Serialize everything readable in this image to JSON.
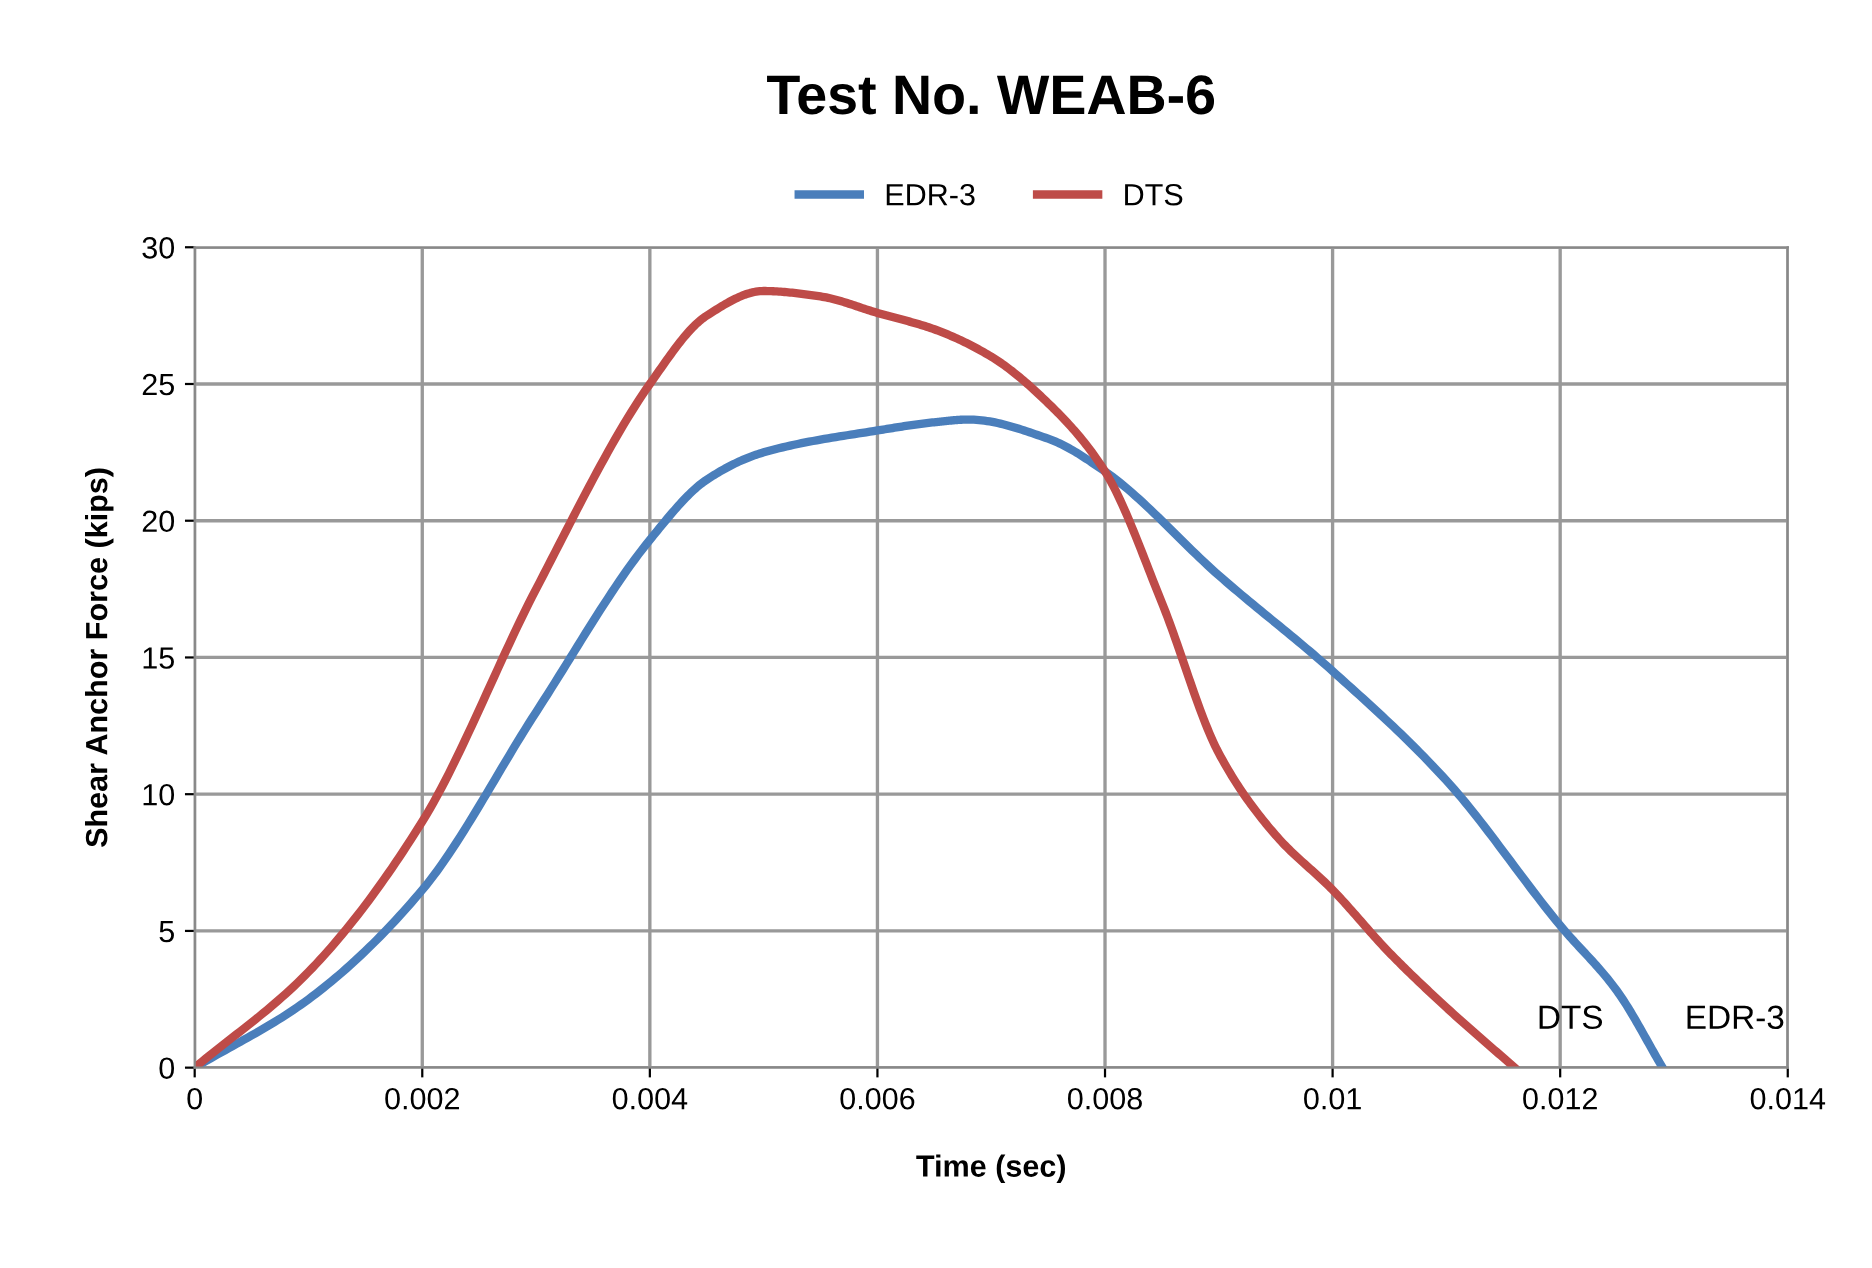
{
  "chart_data": {
    "type": "line",
    "title": "Test No. WEAB-6",
    "xlabel": "Time (sec)",
    "ylabel": "Shear Anchor Force (kips)",
    "series": [
      {
        "name": "EDR-3",
        "color": "#4a7ebb",
        "x": [
          0,
          0.001,
          0.002,
          0.003,
          0.004,
          0.0045,
          0.005,
          0.006,
          0.0065,
          0.0068,
          0.0075,
          0.008,
          0.009,
          0.01,
          0.011,
          0.012,
          0.0125,
          0.0129
        ],
        "values": [
          0,
          2.5,
          6.5,
          13,
          19.3,
          21.5,
          22.5,
          23.3,
          23.6,
          23.7,
          23.0,
          21.8,
          18,
          14.5,
          10.5,
          5.2,
          2.8,
          0
        ]
      },
      {
        "name": "DTS",
        "color": "#be4b48",
        "x": [
          0,
          0.001,
          0.002,
          0.003,
          0.004,
          0.0045,
          0.005,
          0.0055,
          0.006,
          0.0065,
          0.007,
          0.0075,
          0.008,
          0.0085,
          0.009,
          0.0095,
          0.01,
          0.0105,
          0.011,
          0.0116
        ],
        "values": [
          0,
          3.5,
          9,
          17.5,
          25,
          27.5,
          28.4,
          28.2,
          27.6,
          27.0,
          26.0,
          24.3,
          21.8,
          17,
          11.5,
          8.5,
          6.5,
          4.2,
          2.2,
          0
        ]
      }
    ],
    "xlim": [
      0,
      0.014
    ],
    "xticks": [
      0,
      0.002,
      0.004,
      0.006,
      0.008,
      0.01,
      0.012,
      0.014
    ],
    "ylim": [
      0,
      30
    ],
    "yticks": [
      0,
      5,
      10,
      15,
      20,
      25,
      30
    ],
    "grid": true,
    "legend": "top",
    "marker": "none",
    "line_style": "solid"
  }
}
